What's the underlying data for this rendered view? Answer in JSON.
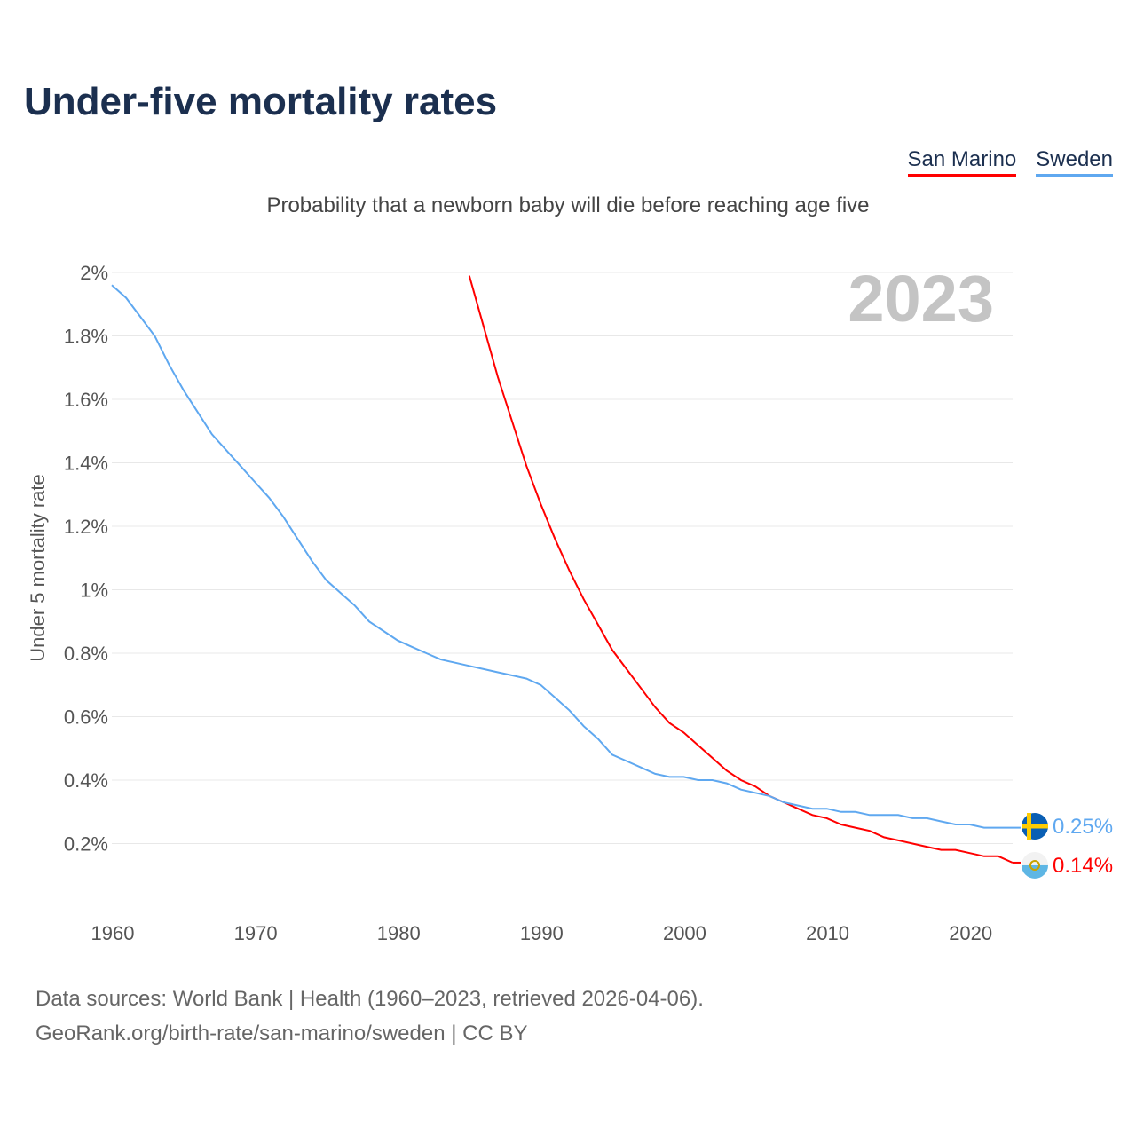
{
  "title": "Under-five mortality rates",
  "subtitle": "Probability that a newborn baby will die before reaching age five",
  "year_label": "2023",
  "sources": [
    "Data sources: World Bank | Health (1960–2023, retrieved 2026-04-06).",
    "GeoRank.org/birth-rate/san-marino/sweden | CC BY"
  ],
  "chart_data": {
    "type": "line",
    "title": "Under-five mortality rates",
    "ylabel": "Under 5 mortality rate",
    "xlabel": "",
    "xlim": [
      1960,
      2023
    ],
    "ylim": [
      0,
      2
    ],
    "x_ticks": [
      "1960",
      "1970",
      "1980",
      "1990",
      "2000",
      "2010",
      "2020"
    ],
    "y_ticks": [
      {
        "v": 0.2,
        "label": "0.2%"
      },
      {
        "v": 0.4,
        "label": "0.4%"
      },
      {
        "v": 0.6,
        "label": "0.6%"
      },
      {
        "v": 0.8,
        "label": "0.8%"
      },
      {
        "v": 1.0,
        "label": "1%"
      },
      {
        "v": 1.2,
        "label": "1.2%"
      },
      {
        "v": 1.4,
        "label": "1.4%"
      },
      {
        "v": 1.6,
        "label": "1.6%"
      },
      {
        "v": 1.8,
        "label": "1.8%"
      },
      {
        "v": 2.0,
        "label": "2%"
      }
    ],
    "grid": true,
    "legend": "top-right",
    "series": [
      {
        "name": "San Marino",
        "color": "#ff0000",
        "start": 1985,
        "end_label": "0.14%",
        "values": [
          1.99,
          1.83,
          1.67,
          1.53,
          1.39,
          1.27,
          1.16,
          1.06,
          0.97,
          0.89,
          0.81,
          0.75,
          0.69,
          0.63,
          0.58,
          0.55,
          0.51,
          0.47,
          0.43,
          0.4,
          0.38,
          0.35,
          0.33,
          0.31,
          0.29,
          0.28,
          0.26,
          0.25,
          0.24,
          0.22,
          0.21,
          0.2,
          0.19,
          0.18,
          0.18,
          0.17,
          0.16,
          0.16,
          0.14
        ]
      },
      {
        "name": "Sweden",
        "color": "#5fa8f0",
        "start": 1960,
        "end_label": "0.25%",
        "values": [
          1.96,
          1.92,
          1.86,
          1.8,
          1.71,
          1.63,
          1.56,
          1.49,
          1.44,
          1.39,
          1.34,
          1.29,
          1.23,
          1.16,
          1.09,
          1.03,
          0.99,
          0.95,
          0.9,
          0.87,
          0.84,
          0.82,
          0.8,
          0.78,
          0.77,
          0.76,
          0.75,
          0.74,
          0.73,
          0.72,
          0.7,
          0.66,
          0.62,
          0.57,
          0.53,
          0.48,
          0.46,
          0.44,
          0.42,
          0.41,
          0.41,
          0.4,
          0.4,
          0.39,
          0.37,
          0.36,
          0.35,
          0.33,
          0.32,
          0.31,
          0.31,
          0.3,
          0.3,
          0.29,
          0.29,
          0.29,
          0.28,
          0.28,
          0.27,
          0.26,
          0.26,
          0.25,
          0.25,
          0.25
        ]
      }
    ]
  }
}
